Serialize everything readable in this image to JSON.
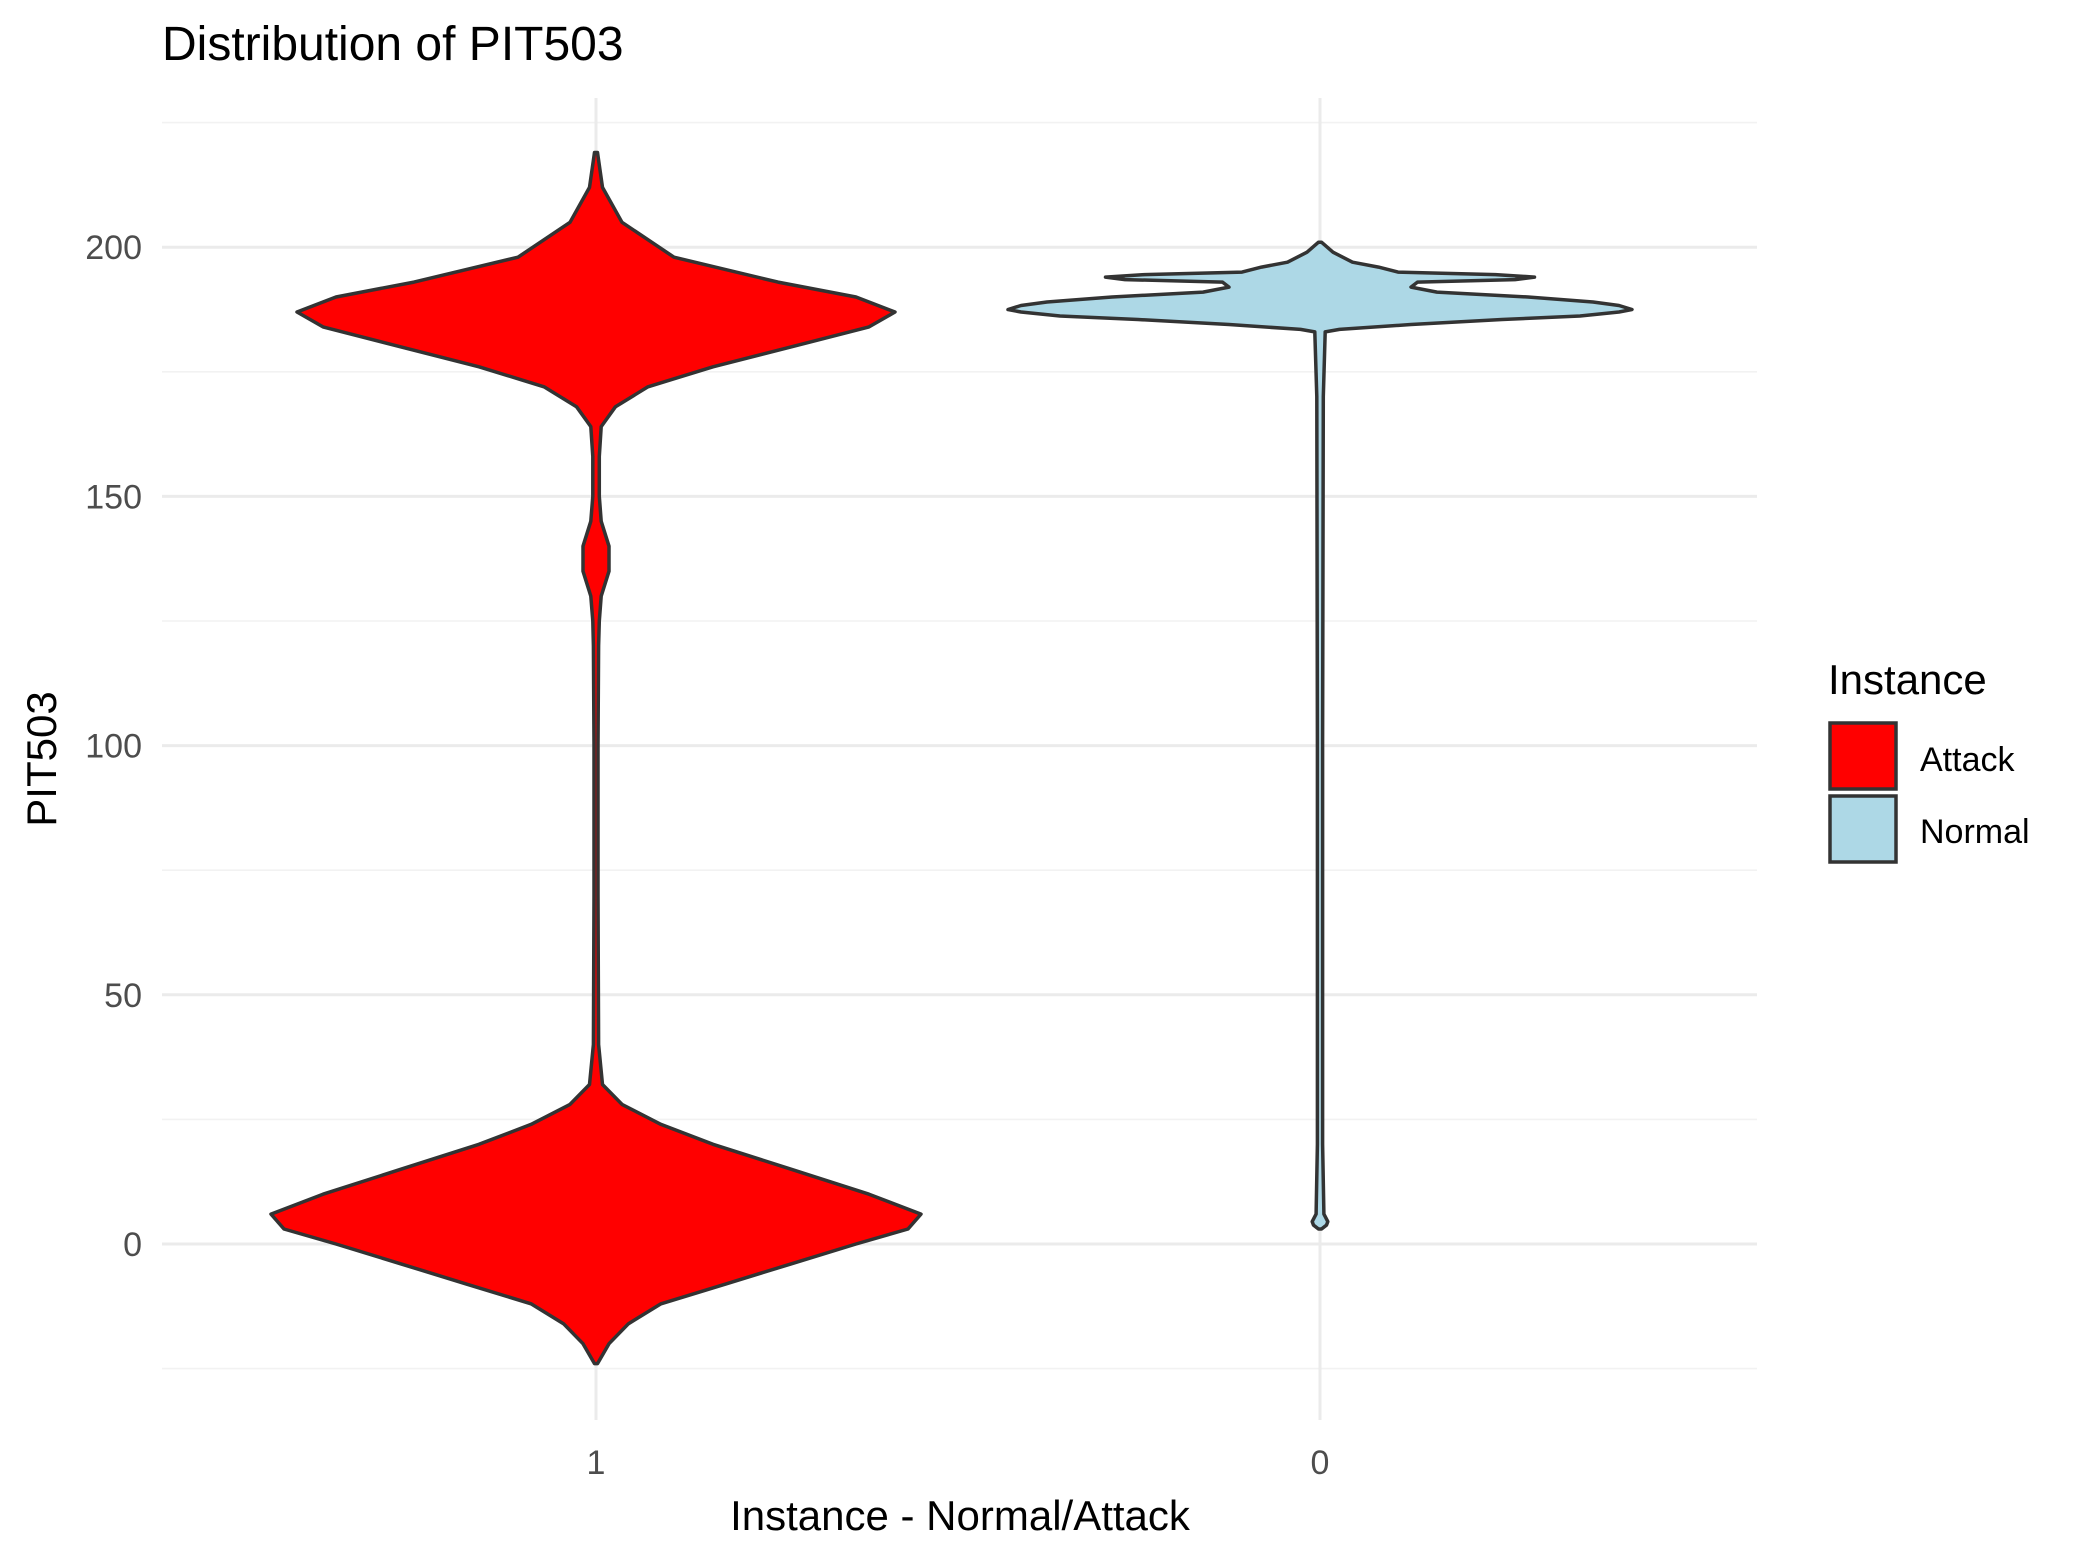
{
  "chart_data": {
    "type": "violin",
    "title": "Distribution of PIT503",
    "xlabel": "Instance - Normal/Attack",
    "ylabel": "PIT503",
    "categories": [
      "1",
      "0"
    ],
    "y_ticks": [
      0,
      50,
      100,
      150,
      200
    ],
    "ylim": [
      -24,
      221
    ],
    "grid": true,
    "legend": {
      "title": "Instance",
      "position": "right",
      "entries": [
        {
          "label": "Attack",
          "color": "#ff0000"
        },
        {
          "label": "Normal",
          "color": "#add8e6"
        }
      ]
    },
    "series": [
      {
        "category": "1",
        "legend_label": "Attack",
        "fill": "#ff0000",
        "y_range": [
          -24,
          219
        ],
        "density_profile": [
          [
            219,
            0.0
          ],
          [
            212,
            0.01
          ],
          [
            205,
            0.04
          ],
          [
            198,
            0.12
          ],
          [
            193,
            0.28
          ],
          [
            190,
            0.4
          ],
          [
            187,
            0.46
          ],
          [
            184,
            0.42
          ],
          [
            180,
            0.3
          ],
          [
            176,
            0.18
          ],
          [
            172,
            0.08
          ],
          [
            168,
            0.03
          ],
          [
            164,
            0.008
          ],
          [
            158,
            0.005
          ],
          [
            150,
            0.005
          ],
          [
            145,
            0.008
          ],
          [
            140,
            0.02
          ],
          [
            135,
            0.02
          ],
          [
            130,
            0.008
          ],
          [
            125,
            0.005
          ],
          [
            120,
            0.004
          ],
          [
            100,
            0.003
          ],
          [
            70,
            0.003
          ],
          [
            40,
            0.004
          ],
          [
            32,
            0.01
          ],
          [
            28,
            0.04
          ],
          [
            24,
            0.1
          ],
          [
            20,
            0.18
          ],
          [
            15,
            0.3
          ],
          [
            10,
            0.42
          ],
          [
            6,
            0.5
          ],
          [
            3,
            0.48
          ],
          [
            0,
            0.4
          ],
          [
            -4,
            0.3
          ],
          [
            -8,
            0.2
          ],
          [
            -12,
            0.1
          ],
          [
            -16,
            0.05
          ],
          [
            -20,
            0.02
          ],
          [
            -24,
            0.0
          ]
        ]
      },
      {
        "category": "0",
        "legend_label": "Normal",
        "fill": "#add8e6",
        "y_range": [
          3,
          201
        ],
        "density_profile": [
          [
            201,
            0.0
          ],
          [
            199,
            0.02
          ],
          [
            197,
            0.05
          ],
          [
            196,
            0.09
          ],
          [
            195,
            0.12
          ],
          [
            194.5,
            0.27
          ],
          [
            194,
            0.33
          ],
          [
            193.5,
            0.3
          ],
          [
            193,
            0.15
          ],
          [
            192,
            0.14
          ],
          [
            191,
            0.18
          ],
          [
            190,
            0.32
          ],
          [
            189,
            0.42
          ],
          [
            188.3,
            0.46
          ],
          [
            187.5,
            0.48
          ],
          [
            187,
            0.46
          ],
          [
            186.2,
            0.4
          ],
          [
            185.5,
            0.28
          ],
          [
            184.5,
            0.14
          ],
          [
            183.5,
            0.03
          ],
          [
            183,
            0.008
          ],
          [
            170,
            0.005
          ],
          [
            100,
            0.004
          ],
          [
            20,
            0.004
          ],
          [
            6,
            0.006
          ],
          [
            4.5,
            0.012
          ],
          [
            3.8,
            0.01
          ],
          [
            3,
            0.0
          ]
        ]
      }
    ]
  }
}
